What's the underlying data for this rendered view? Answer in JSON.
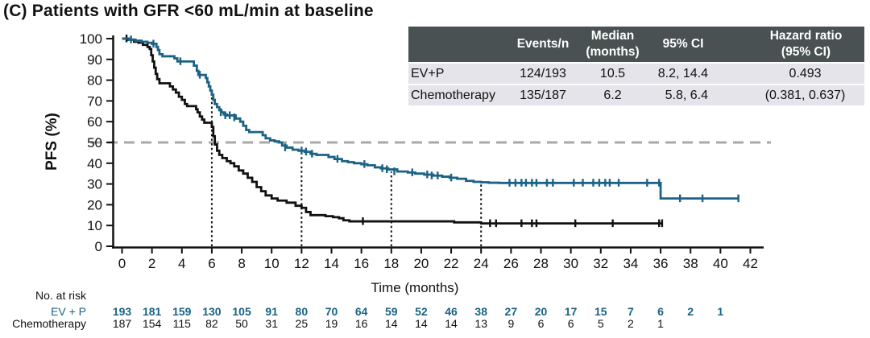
{
  "title": "(C) Patients with GFR <60 mL/min at baseline",
  "colors": {
    "accent_blue": "#1b6284",
    "black": "#111111",
    "dashed_line": "#a8a8a8",
    "table_header_bg": "#4a5153",
    "table_row_bg": "#e4e4ea"
  },
  "chart_data": {
    "type": "line",
    "subtype": "kaplan-meier-step",
    "xlabel": "Time (months)",
    "ylabel": "PFS (%)",
    "xlim": [
      0,
      42
    ],
    "ylim": [
      0,
      100
    ],
    "xticks": [
      0,
      2,
      4,
      6,
      8,
      10,
      12,
      14,
      16,
      18,
      20,
      22,
      24,
      26,
      28,
      30,
      32,
      34,
      36,
      38,
      40,
      42
    ],
    "yticks": [
      0,
      10,
      20,
      30,
      40,
      50,
      60,
      70,
      80,
      90,
      100
    ],
    "grid": false,
    "horizontal_reference_line": {
      "y": 50,
      "style": "dashed"
    },
    "vertical_reference_lines": [
      {
        "x": 6,
        "top": 73
      },
      {
        "x": 12,
        "top": 45.5
      },
      {
        "x": 18,
        "top": 36
      },
      {
        "x": 24,
        "top": 30.8
      }
    ],
    "series": [
      {
        "name": "EV+P",
        "color": "#1b6284",
        "points": [
          [
            0,
            100
          ],
          [
            0.5,
            99.5
          ],
          [
            0.9,
            99
          ],
          [
            1.3,
            98.5
          ],
          [
            1.7,
            98
          ],
          [
            2.0,
            97.5
          ],
          [
            2.3,
            96
          ],
          [
            2.4,
            94.5
          ],
          [
            2.5,
            92.5
          ],
          [
            2.7,
            91.5
          ],
          [
            3.5,
            90.5
          ],
          [
            3.7,
            89
          ],
          [
            4.8,
            87
          ],
          [
            5.0,
            84.5
          ],
          [
            5.1,
            82.5
          ],
          [
            5.6,
            81
          ],
          [
            5.7,
            79
          ],
          [
            5.8,
            77
          ],
          [
            5.9,
            75
          ],
          [
            6.0,
            73
          ],
          [
            6.1,
            70.5
          ],
          [
            6.2,
            68.5
          ],
          [
            6.35,
            67
          ],
          [
            6.5,
            65.5
          ],
          [
            6.65,
            64.5
          ],
          [
            6.8,
            63.5
          ],
          [
            7.0,
            63
          ],
          [
            7.6,
            61.5
          ],
          [
            7.9,
            60
          ],
          [
            8.1,
            58
          ],
          [
            8.3,
            56
          ],
          [
            8.5,
            55
          ],
          [
            9.4,
            53.5
          ],
          [
            9.6,
            52
          ],
          [
            9.9,
            51
          ],
          [
            10.2,
            50.5
          ],
          [
            10.5,
            50
          ],
          [
            10.7,
            48.5
          ],
          [
            11.0,
            47.5
          ],
          [
            11.4,
            46.5
          ],
          [
            11.8,
            46
          ],
          [
            12.2,
            45.5
          ],
          [
            12.6,
            44.5
          ],
          [
            13.0,
            44
          ],
          [
            13.8,
            43
          ],
          [
            14.2,
            42
          ],
          [
            14.7,
            41
          ],
          [
            15.1,
            40.5
          ],
          [
            15.5,
            40
          ],
          [
            16.0,
            39.5
          ],
          [
            16.4,
            39
          ],
          [
            16.9,
            38
          ],
          [
            17.3,
            37.5
          ],
          [
            17.8,
            37
          ],
          [
            18.4,
            36
          ],
          [
            19.1,
            35.5
          ],
          [
            19.6,
            35
          ],
          [
            20.2,
            34.5
          ],
          [
            20.8,
            34
          ],
          [
            21.4,
            33.5
          ],
          [
            21.9,
            33
          ],
          [
            22.4,
            32.5
          ],
          [
            23.0,
            31.5
          ],
          [
            23.5,
            31
          ],
          [
            24.0,
            30.8
          ],
          [
            24.5,
            30.6
          ],
          [
            25.2,
            30.5
          ],
          [
            36.0,
            23
          ],
          [
            41.2,
            23
          ]
        ],
        "censor_marks": [
          [
            0.6,
            99.5
          ],
          [
            2.1,
            97.5
          ],
          [
            3.9,
            89
          ],
          [
            5.2,
            82.5
          ],
          [
            6.6,
            64.5
          ],
          [
            6.9,
            63
          ],
          [
            7.2,
            63
          ],
          [
            7.5,
            62
          ],
          [
            10.9,
            47.5
          ],
          [
            12.0,
            46
          ],
          [
            12.3,
            45.5
          ],
          [
            12.7,
            44.5
          ],
          [
            14.4,
            42
          ],
          [
            16.2,
            39.5
          ],
          [
            17.4,
            37.5
          ],
          [
            17.7,
            37
          ],
          [
            18.2,
            36
          ],
          [
            19.4,
            35.5
          ],
          [
            20.4,
            34.5
          ],
          [
            20.7,
            34
          ],
          [
            21.1,
            34
          ],
          [
            22.0,
            33
          ],
          [
            25.9,
            30.5
          ],
          [
            26.3,
            30.5
          ],
          [
            26.7,
            30.5
          ],
          [
            27.0,
            30.5
          ],
          [
            27.4,
            30.5
          ],
          [
            27.7,
            30.5
          ],
          [
            28.4,
            30.5
          ],
          [
            28.8,
            30.5
          ],
          [
            30.2,
            30.5
          ],
          [
            30.8,
            30.5
          ],
          [
            31.5,
            30.5
          ],
          [
            31.9,
            30.5
          ],
          [
            32.3,
            30.5
          ],
          [
            32.6,
            30.5
          ],
          [
            33.2,
            30.5
          ],
          [
            35.1,
            30.5
          ],
          [
            35.9,
            30.5
          ],
          [
            37.3,
            23
          ],
          [
            38.8,
            23
          ],
          [
            41.2,
            23
          ]
        ]
      },
      {
        "name": "Chemotherapy",
        "color": "#111111",
        "points": [
          [
            0,
            100
          ],
          [
            0.4,
            99.5
          ],
          [
            0.8,
            98.5
          ],
          [
            1.1,
            98
          ],
          [
            1.4,
            97
          ],
          [
            1.7,
            96
          ],
          [
            1.85,
            95
          ],
          [
            1.95,
            92
          ],
          [
            2.05,
            89
          ],
          [
            2.15,
            86
          ],
          [
            2.25,
            83
          ],
          [
            2.35,
            80.5
          ],
          [
            2.5,
            78.5
          ],
          [
            3.2,
            77
          ],
          [
            3.4,
            75.5
          ],
          [
            3.6,
            74
          ],
          [
            3.8,
            72
          ],
          [
            4.0,
            70.5
          ],
          [
            4.2,
            68.5
          ],
          [
            4.35,
            67.5
          ],
          [
            4.95,
            66
          ],
          [
            5.05,
            64.5
          ],
          [
            5.2,
            62.5
          ],
          [
            5.35,
            61
          ],
          [
            5.5,
            59.5
          ],
          [
            6.0,
            57.5
          ],
          [
            6.1,
            53
          ],
          [
            6.2,
            49
          ],
          [
            6.35,
            46
          ],
          [
            6.5,
            44
          ],
          [
            6.7,
            42.5
          ],
          [
            7.0,
            41
          ],
          [
            7.25,
            40
          ],
          [
            7.5,
            38.5
          ],
          [
            7.8,
            36.5
          ],
          [
            8.1,
            35
          ],
          [
            8.4,
            33
          ],
          [
            8.7,
            31
          ],
          [
            9.0,
            28.5
          ],
          [
            9.3,
            26.5
          ],
          [
            9.6,
            24.5
          ],
          [
            10.0,
            23
          ],
          [
            10.4,
            22
          ],
          [
            11.0,
            21
          ],
          [
            11.6,
            19.5
          ],
          [
            12.0,
            18.5
          ],
          [
            12.3,
            16.5
          ],
          [
            12.6,
            15
          ],
          [
            13.6,
            14.5
          ],
          [
            14.1,
            14
          ],
          [
            14.5,
            13.5
          ],
          [
            14.8,
            12.5
          ],
          [
            15.2,
            12
          ],
          [
            22.2,
            11.5
          ],
          [
            24.0,
            11
          ],
          [
            36.1,
            11
          ]
        ],
        "censor_marks": [
          [
            0.3,
            100
          ],
          [
            16.1,
            12
          ],
          [
            24.6,
            11
          ],
          [
            25.0,
            11
          ],
          [
            26.7,
            11
          ],
          [
            27.4,
            11
          ],
          [
            27.7,
            11
          ],
          [
            30.3,
            11
          ],
          [
            32.8,
            11
          ],
          [
            35.9,
            11
          ],
          [
            36.1,
            11
          ]
        ]
      }
    ]
  },
  "summary_table": {
    "headers": [
      "",
      "Events/n",
      "Median\n(months)",
      "95% CI",
      "Hazard ratio\n(95% CI)"
    ],
    "rows": [
      [
        "EV+P",
        "124/193",
        "10.5",
        "8.2, 14.4",
        "0.493"
      ],
      [
        "Chemotherapy",
        "135/187",
        "6.2",
        "5.8, 6.4",
        "(0.381, 0.637)"
      ]
    ]
  },
  "at_risk": {
    "label": "No. at risk",
    "times": [
      0,
      2,
      4,
      6,
      8,
      10,
      12,
      14,
      16,
      18,
      20,
      22,
      24,
      26,
      28,
      30,
      32,
      34,
      36,
      38,
      40
    ],
    "rows": [
      {
        "label": "EV + P",
        "color": "#1b6284",
        "counts": [
          193,
          181,
          159,
          130,
          105,
          91,
          80,
          70,
          64,
          59,
          52,
          46,
          38,
          27,
          20,
          17,
          15,
          7,
          6,
          2,
          1
        ]
      },
      {
        "label": "Chemotherapy",
        "color": "#111111",
        "counts": [
          187,
          154,
          115,
          82,
          50,
          31,
          25,
          19,
          16,
          14,
          14,
          14,
          13,
          9,
          6,
          6,
          5,
          2,
          1
        ]
      }
    ]
  }
}
